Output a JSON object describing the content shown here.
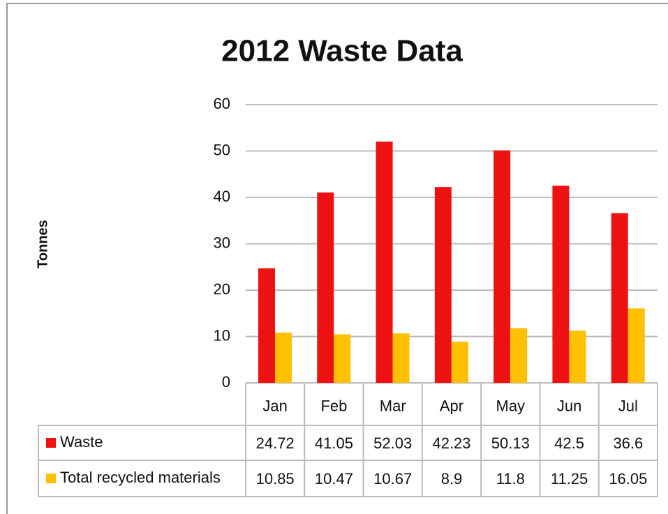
{
  "chart_data": {
    "type": "bar",
    "title": "2012 Waste Data",
    "y_label": "Tonnes",
    "categories": [
      "Jan",
      "Feb",
      "Mar",
      "Apr",
      "May",
      "Jun",
      "Jul"
    ],
    "series": [
      {
        "name": "Waste",
        "color": "#ee1111",
        "values": [
          24.72,
          41.05,
          52.03,
          42.23,
          50.13,
          42.5,
          36.6
        ]
      },
      {
        "name": "Total recycled materials",
        "color": "#ffc000",
        "values": [
          10.85,
          10.47,
          10.67,
          8.9,
          11.8,
          11.25,
          16.05
        ]
      }
    ],
    "ylim": [
      0,
      60
    ],
    "yticks": [
      0,
      10,
      20,
      30,
      40,
      50,
      60
    ],
    "grid": true,
    "data_table": true
  }
}
